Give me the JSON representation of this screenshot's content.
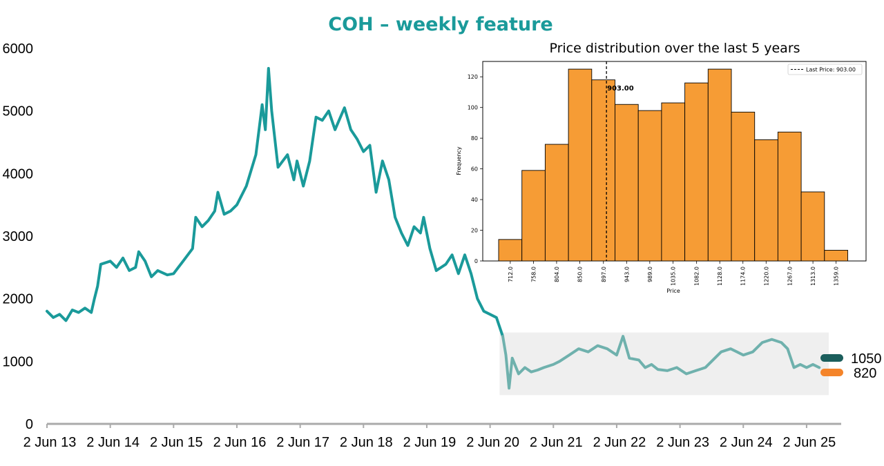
{
  "chart_data": [
    {
      "type": "line",
      "title": "COH – weekly feature",
      "xlabel": "",
      "ylabel": "",
      "ylim": [
        0,
        6000
      ],
      "y_ticks": [
        "0",
        "1000",
        "2000",
        "3000",
        "4000",
        "5000",
        "6000"
      ],
      "x_ticks": [
        "2 Jun 13",
        "2 Jun 14",
        "2 Jun 15",
        "2 Jun 16",
        "2 Jun 17",
        "2 Jun 18",
        "2 Jun 19",
        "2 Jun 20",
        "2 Jun 21",
        "2 Jun 22",
        "2 Jun 23",
        "2 Jun 24",
        "2 Jun 25"
      ],
      "grid": false,
      "colors": {
        "line": "#1a9a9a",
        "highlight_line": "#6fb1ad",
        "highlight_band": "#efefef",
        "axis": "#aaaaaa"
      },
      "series": [
        {
          "values": [
            [
              2013.0,
              1800
            ],
            [
              2013.1,
              1700
            ],
            [
              2013.2,
              1750
            ],
            [
              2013.3,
              1650
            ],
            [
              2013.4,
              1820
            ],
            [
              2013.5,
              1780
            ],
            [
              2013.6,
              1850
            ],
            [
              2013.7,
              1780
            ],
            [
              2013.75,
              2000
            ],
            [
              2013.8,
              2200
            ],
            [
              2013.85,
              2550
            ],
            [
              2014.0,
              2600
            ],
            [
              2014.1,
              2500
            ],
            [
              2014.2,
              2650
            ],
            [
              2014.3,
              2450
            ],
            [
              2014.4,
              2500
            ],
            [
              2014.45,
              2750
            ],
            [
              2014.55,
              2600
            ],
            [
              2014.65,
              2350
            ],
            [
              2014.75,
              2450
            ],
            [
              2014.9,
              2380
            ],
            [
              2015.0,
              2400
            ],
            [
              2015.15,
              2600
            ],
            [
              2015.3,
              2800
            ],
            [
              2015.35,
              3300
            ],
            [
              2015.45,
              3150
            ],
            [
              2015.55,
              3250
            ],
            [
              2015.65,
              3400
            ],
            [
              2015.7,
              3700
            ],
            [
              2015.8,
              3350
            ],
            [
              2015.9,
              3400
            ],
            [
              2016.0,
              3500
            ],
            [
              2016.15,
              3800
            ],
            [
              2016.3,
              4300
            ],
            [
              2016.4,
              5100
            ],
            [
              2016.45,
              4700
            ],
            [
              2016.5,
              5680
            ],
            [
              2016.55,
              5000
            ],
            [
              2016.65,
              4100
            ],
            [
              2016.8,
              4300
            ],
            [
              2016.9,
              3900
            ],
            [
              2016.95,
              4200
            ],
            [
              2017.05,
              3800
            ],
            [
              2017.15,
              4200
            ],
            [
              2017.25,
              4900
            ],
            [
              2017.35,
              4850
            ],
            [
              2017.45,
              5000
            ],
            [
              2017.55,
              4700
            ],
            [
              2017.7,
              5050
            ],
            [
              2017.8,
              4700
            ],
            [
              2017.9,
              4550
            ],
            [
              2018.0,
              4350
            ],
            [
              2018.1,
              4450
            ],
            [
              2018.2,
              3700
            ],
            [
              2018.3,
              4200
            ],
            [
              2018.4,
              3900
            ],
            [
              2018.5,
              3300
            ],
            [
              2018.6,
              3050
            ],
            [
              2018.7,
              2850
            ],
            [
              2018.8,
              3150
            ],
            [
              2018.9,
              3050
            ],
            [
              2018.95,
              3300
            ],
            [
              2019.05,
              2800
            ],
            [
              2019.15,
              2450
            ],
            [
              2019.3,
              2550
            ],
            [
              2019.4,
              2700
            ],
            [
              2019.5,
              2400
            ],
            [
              2019.6,
              2700
            ],
            [
              2019.7,
              2400
            ],
            [
              2019.8,
              2000
            ],
            [
              2019.9,
              1800
            ],
            [
              2020.0,
              1750
            ],
            [
              2020.1,
              1700
            ],
            [
              2020.2,
              1400
            ]
          ]
        },
        {
          "values": [
            [
              2020.2,
              1400
            ],
            [
              2020.25,
              1100
            ],
            [
              2020.3,
              570
            ],
            [
              2020.35,
              1050
            ],
            [
              2020.45,
              800
            ],
            [
              2020.55,
              900
            ],
            [
              2020.65,
              830
            ],
            [
              2020.75,
              860
            ],
            [
              2020.85,
              900
            ],
            [
              2021.0,
              950
            ],
            [
              2021.1,
              1000
            ],
            [
              2021.25,
              1100
            ],
            [
              2021.4,
              1200
            ],
            [
              2021.55,
              1150
            ],
            [
              2021.7,
              1250
            ],
            [
              2021.85,
              1200
            ],
            [
              2022.0,
              1100
            ],
            [
              2022.1,
              1400
            ],
            [
              2022.2,
              1050
            ],
            [
              2022.35,
              1020
            ],
            [
              2022.45,
              900
            ],
            [
              2022.55,
              950
            ],
            [
              2022.65,
              870
            ],
            [
              2022.8,
              850
            ],
            [
              2022.95,
              900
            ],
            [
              2023.1,
              800
            ],
            [
              2023.25,
              850
            ],
            [
              2023.4,
              900
            ],
            [
              2023.55,
              1050
            ],
            [
              2023.65,
              1150
            ],
            [
              2023.8,
              1200
            ],
            [
              2023.9,
              1150
            ],
            [
              2024.0,
              1100
            ],
            [
              2024.15,
              1150
            ],
            [
              2024.3,
              1300
            ],
            [
              2024.45,
              1350
            ],
            [
              2024.6,
              1300
            ],
            [
              2024.7,
              1200
            ],
            [
              2024.8,
              900
            ],
            [
              2024.9,
              950
            ],
            [
              2025.0,
              900
            ],
            [
              2025.1,
              950
            ],
            [
              2025.2,
              900
            ]
          ]
        }
      ],
      "highlight_band": {
        "x": [
          2020.15,
          2025.35
        ],
        "y": [
          460,
          1460
        ]
      },
      "right_labels": [
        {
          "value": "1050",
          "color": "#1b5e5c"
        },
        {
          "value": "820",
          "color": "#f4842a"
        }
      ]
    },
    {
      "type": "bar",
      "title": "Price distribution over the last 5 years",
      "xlabel": "Price",
      "ylabel": "Frequency",
      "ylim": [
        0,
        130
      ],
      "y_ticks": [
        "0",
        "20",
        "40",
        "60",
        "80",
        "100",
        "120"
      ],
      "categories": [
        "712.0",
        "758.0",
        "804.0",
        "850.0",
        "897.0",
        "943.0",
        "989.0",
        "1035.0",
        "1082.0",
        "1128.0",
        "1174.0",
        "1220.0",
        "1267.0",
        "1313.0",
        "1359.0"
      ],
      "values": [
        14,
        59,
        76,
        125,
        118,
        102,
        98,
        103,
        116,
        125,
        97,
        79,
        84,
        45,
        7
      ],
      "last_price": 903.0,
      "last_price_label": "903.00",
      "legend": "Last Price: 903.00",
      "legend_position": "top-right",
      "colors": {
        "bar": "#f69c35",
        "edge": "#000000"
      }
    }
  ]
}
